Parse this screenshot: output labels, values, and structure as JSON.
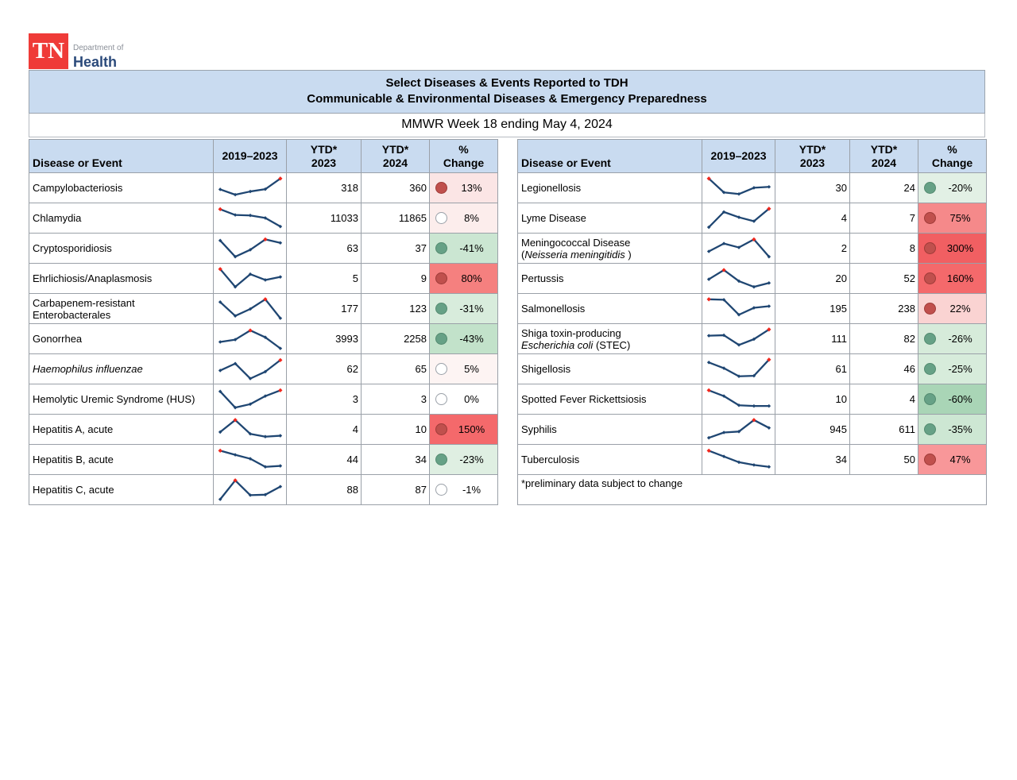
{
  "logo": {
    "tn": "TN",
    "department_of": "Department of",
    "health": "Health"
  },
  "title": {
    "line1": "Select Diseases & Events Reported to TDH",
    "line2": "Communicable & Environmental Diseases & Emergency Preparedness",
    "subtitle": "MMWR Week 18 ending May 4, 2024"
  },
  "columns": {
    "disease": "Disease or Event",
    "trend": "2019–2023",
    "ytd2023": "YTD*\n2023",
    "ytd2024": "YTD*\n2024",
    "pct": "%\nChange"
  },
  "footnote": "*preliminary data subject to change",
  "colors": {
    "header_bg": "#C9DBF0",
    "tn_red": "#EF3B38",
    "brand_navy": "#1F3864",
    "spark_line": "#1F4672",
    "spark_marker": "#1F4672",
    "spark_high_marker": "#F0281E",
    "dot_increase": "#C0504D",
    "dot_decrease": "#66A186",
    "dot_neutral_border": "#9aa0a8"
  },
  "tables": {
    "left": {
      "rows": [
        {
          "name": [
            [
              {
                "t": "Campylobacteriosis",
                "i": false
              }
            ]
          ],
          "spark": {
            "y": [
              55,
              78,
              64,
              54,
              8
            ],
            "red": 4
          },
          "ytd2023": "318",
          "ytd2024": "360",
          "dot": "up",
          "pct": "13%",
          "bg": "#FBE5E5"
        },
        {
          "name": [
            [
              {
                "t": "Chlamydia",
                "i": false
              }
            ]
          ],
          "spark": {
            "y": [
              10,
              35,
              37,
              48,
              85
            ],
            "red": 0
          },
          "ytd2023": "11033",
          "ytd2024": "11865",
          "dot": "none",
          "pct": "8%",
          "bg": "#FCEDEC"
        },
        {
          "name": [
            [
              {
                "t": "Cryptosporidiosis",
                "i": false
              }
            ]
          ],
          "spark": {
            "y": [
              15,
              85,
              55,
              10,
              25
            ],
            "red": 3
          },
          "ytd2023": "63",
          "ytd2024": "37",
          "dot": "down",
          "pct": "-41%",
          "bg": "#CBE6D2"
        },
        {
          "name": [
            [
              {
                "t": "Ehrlichiosis/Anaplasmosis",
                "i": false
              }
            ]
          ],
          "spark": {
            "y": [
              8,
              85,
              30,
              55,
              42
            ],
            "red": 0
          },
          "ytd2023": "5",
          "ytd2024": "9",
          "dot": "up",
          "pct": "80%",
          "bg": "#F5807F"
        },
        {
          "name": [
            [
              {
                "t": "Carbapenem-resistant",
                "i": false
              }
            ],
            [
              {
                "t": "Enterobacterales",
                "i": false
              }
            ]
          ],
          "spark": {
            "y": [
              20,
              80,
              50,
              8,
              90
            ],
            "red": 3
          },
          "ytd2023": "177",
          "ytd2024": "123",
          "dot": "down",
          "pct": "-31%",
          "bg": "#D8ECDC"
        },
        {
          "name": [
            [
              {
                "t": "Gonorrhea",
                "i": false
              }
            ]
          ],
          "spark": {
            "y": [
              62,
              52,
              12,
              42,
              90
            ],
            "red": 2
          },
          "ytd2023": "3993",
          "ytd2024": "2258",
          "dot": "down",
          "pct": "-43%",
          "bg": "#C2E2CA"
        },
        {
          "name": [
            [
              {
                "t": "Haemophilus influenzae",
                "i": true
              }
            ]
          ],
          "spark": {
            "y": [
              55,
              25,
              90,
              60,
              10
            ],
            "red": 4
          },
          "ytd2023": "62",
          "ytd2024": "65",
          "dot": "none",
          "pct": "5%",
          "bg": "#FDF4F3"
        },
        {
          "name": [
            [
              {
                "t": "Hemolytic Uremic Syndrome (HUS)",
                "i": false
              }
            ]
          ],
          "spark": {
            "y": [
              15,
              85,
              70,
              35,
              10
            ],
            "red": 4
          },
          "ytd2023": "3",
          "ytd2024": "3",
          "dot": "none",
          "pct": "0%",
          "bg": "#FFFFFF"
        },
        {
          "name": [
            [
              {
                "t": "Hepatitis A, acute",
                "i": false
              }
            ]
          ],
          "spark": {
            "y": [
              60,
              8,
              68,
              80,
              76
            ],
            "red": 1
          },
          "ytd2023": "4",
          "ytd2024": "10",
          "dot": "up",
          "pct": "150%",
          "bg": "#F4696B"
        },
        {
          "name": [
            [
              {
                "t": "Hepatitis B, acute",
                "i": false
              }
            ]
          ],
          "spark": {
            "y": [
              10,
              28,
              45,
              80,
              76
            ],
            "red": 0
          },
          "ytd2023": "44",
          "ytd2024": "34",
          "dot": "down",
          "pct": "-23%",
          "bg": "#DFEFE2"
        },
        {
          "name": [
            [
              {
                "t": "Hepatitis C, acute",
                "i": false
              }
            ]
          ],
          "spark": {
            "y": [
              90,
              8,
              72,
              70,
              35
            ],
            "red": 1
          },
          "ytd2023": "88",
          "ytd2024": "87",
          "dot": "none",
          "pct": "-1%",
          "bg": "#FFFFFF"
        }
      ]
    },
    "right": {
      "rows": [
        {
          "name": [
            [
              {
                "t": "Legionellosis",
                "i": false
              }
            ]
          ],
          "spark": {
            "y": [
              8,
              68,
              75,
              48,
              44
            ],
            "red": 0
          },
          "ytd2023": "30",
          "ytd2024": "24",
          "dot": "down",
          "pct": "-20%",
          "bg": "#E2F0E5"
        },
        {
          "name": [
            [
              {
                "t": "Lyme Disease",
                "i": false
              }
            ]
          ],
          "spark": {
            "y": [
              88,
              22,
              45,
              62,
              8
            ],
            "red": 4
          },
          "ytd2023": "4",
          "ytd2024": "7",
          "dot": "up",
          "pct": "75%",
          "bg": "#F5898A"
        },
        {
          "name": [
            [
              {
                "t": "Meningococcal Disease",
                "i": false
              }
            ],
            [
              {
                "t": "(",
                "i": false
              },
              {
                "t": "Neisseria meningitidis",
                "i": true
              },
              {
                "t": " )",
                "i": false
              }
            ]
          ],
          "spark": {
            "y": [
              62,
              28,
              45,
              10,
              85
            ],
            "red": 3
          },
          "ytd2023": "2",
          "ytd2024": "8",
          "dot": "up",
          "pct": "300%",
          "bg": "#F15F62"
        },
        {
          "name": [
            [
              {
                "t": "Pertussis",
                "i": false
              }
            ]
          ],
          "spark": {
            "y": [
              52,
              12,
              60,
              85,
              68
            ],
            "red": 1
          },
          "ytd2023": "20",
          "ytd2024": "52",
          "dot": "up",
          "pct": "160%",
          "bg": "#F4696B"
        },
        {
          "name": [
            [
              {
                "t": "Salmonellosis",
                "i": false
              }
            ]
          ],
          "spark": {
            "y": [
              8,
              10,
              75,
              45,
              38
            ],
            "red": 0
          },
          "ytd2023": "195",
          "ytd2024": "238",
          "dot": "up",
          "pct": "22%",
          "bg": "#FAD3D2"
        },
        {
          "name": [
            [
              {
                "t": "Shiga toxin-producing",
                "i": false
              }
            ],
            [
              {
                "t": "Escherichia coli",
                "i": true
              },
              {
                "t": " (STEC)",
                "i": false
              }
            ]
          ],
          "spark": {
            "y": [
              35,
              33,
              75,
              50,
              8
            ],
            "red": 4
          },
          "ytd2023": "111",
          "ytd2024": "82",
          "dot": "down",
          "pct": "-26%",
          "bg": "#D6EBDA"
        },
        {
          "name": [
            [
              {
                "t": "Shigellosis",
                "i": false
              }
            ]
          ],
          "spark": {
            "y": [
              20,
              45,
              80,
              78,
              8
            ],
            "red": 4
          },
          "ytd2023": "61",
          "ytd2024": "46",
          "dot": "down",
          "pct": "-25%",
          "bg": "#D7ECDB"
        },
        {
          "name": [
            [
              {
                "t": "Spotted Fever Rickettsiosis",
                "i": false
              }
            ]
          ],
          "spark": {
            "y": [
              10,
              35,
              75,
              78,
              78
            ],
            "red": 0
          },
          "ytd2023": "10",
          "ytd2024": "4",
          "dot": "down",
          "pct": "-60%",
          "bg": "#A9D5B6"
        },
        {
          "name": [
            [
              {
                "t": "Syphilis",
                "i": false
              }
            ]
          ],
          "spark": {
            "y": [
              85,
              62,
              58,
              8,
              42
            ],
            "red": 3
          },
          "ytd2023": "945",
          "ytd2024": "611",
          "dot": "down",
          "pct": "-35%",
          "bg": "#CDE7D3"
        },
        {
          "name": [
            [
              {
                "t": "Tuberculosis",
                "i": false
              }
            ]
          ],
          "spark": {
            "y": [
              10,
              35,
              60,
              72,
              80
            ],
            "red": 0
          },
          "ytd2023": "34",
          "ytd2024": "50",
          "dot": "up",
          "pct": "47%",
          "bg": "#F89799"
        }
      ]
    }
  }
}
